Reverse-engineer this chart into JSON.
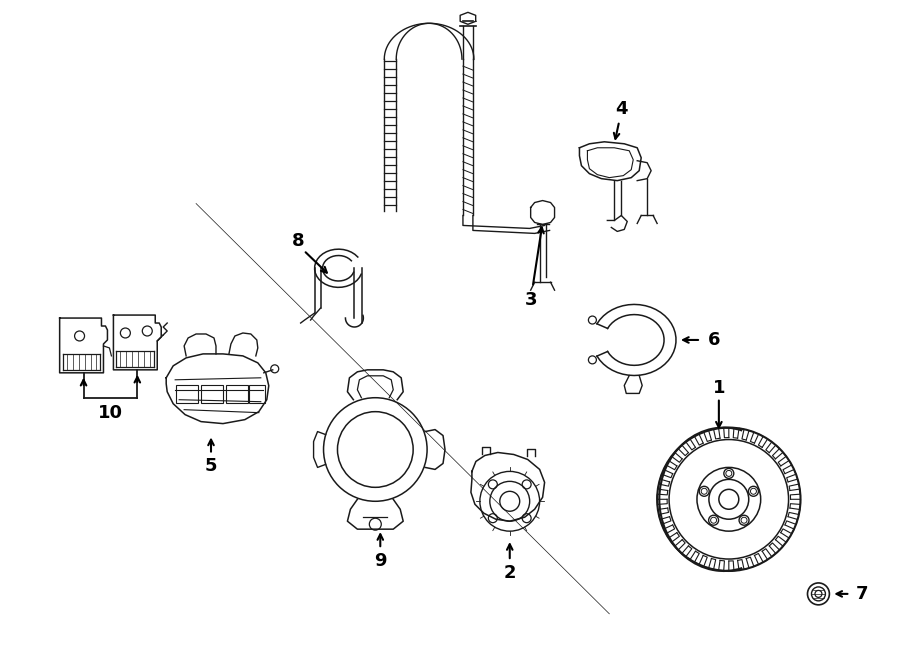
{
  "background_color": "#ffffff",
  "line_color": "#1a1a1a",
  "figure_width": 9.0,
  "figure_height": 6.61,
  "dpi": 100,
  "xlim": [
    0,
    900
  ],
  "ylim": [
    0,
    661
  ]
}
